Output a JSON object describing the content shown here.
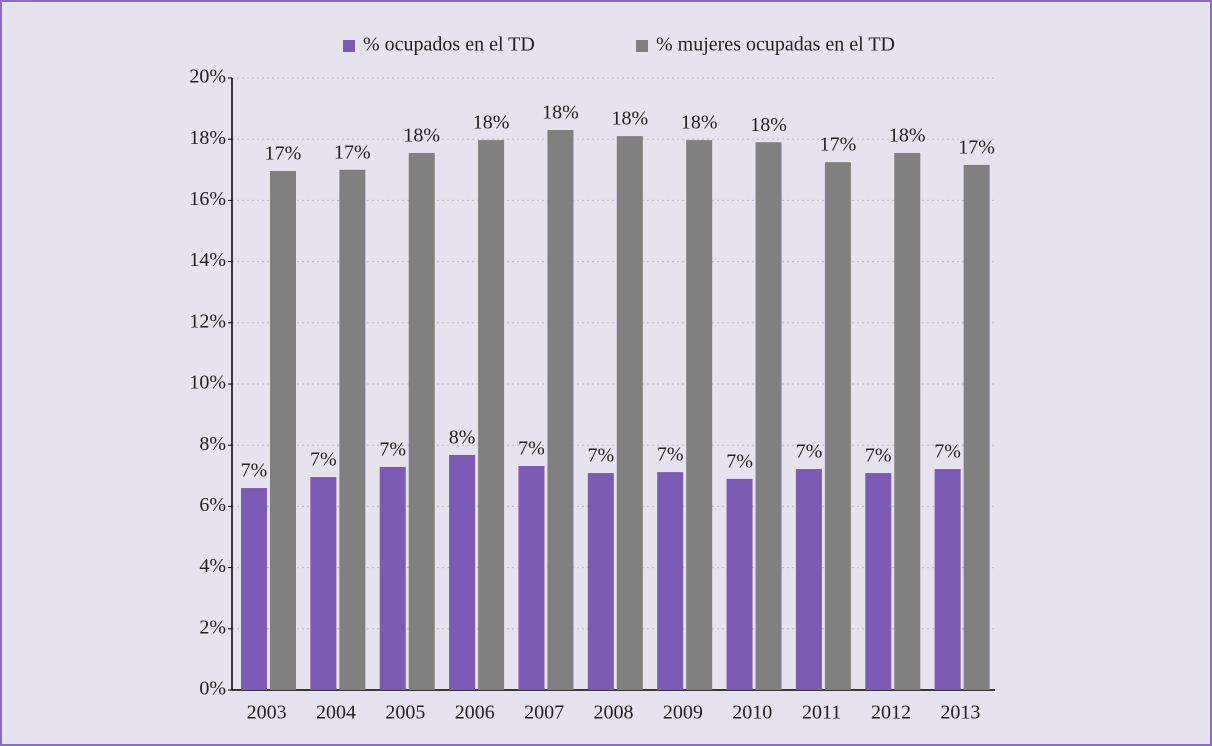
{
  "chart_data": {
    "type": "bar",
    "categories": [
      "2003",
      "2004",
      "2005",
      "2006",
      "2007",
      "2008",
      "2009",
      "2010",
      "2011",
      "2012",
      "2013"
    ],
    "series": [
      {
        "name": "% ocupados en el TD",
        "color": "#7b5bb3",
        "values": [
          6.6,
          6.96,
          7.29,
          7.68,
          7.32,
          7.09,
          7.12,
          6.9,
          7.22,
          7.09,
          7.22
        ],
        "value_labels": [
          "7%",
          "7%",
          "7%",
          "8%",
          "7%",
          "7%",
          "7%",
          "7%",
          "7%",
          "7%",
          "7%"
        ]
      },
      {
        "name": "% mujeres ocupadas en el TD",
        "color": "#808080",
        "values": [
          16.96,
          17.0,
          17.55,
          17.97,
          18.3,
          18.1,
          17.97,
          17.9,
          17.25,
          17.55,
          17.16
        ],
        "value_labels": [
          "17%",
          "17%",
          "18%",
          "18%",
          "18%",
          "18%",
          "18%",
          "18%",
          "17%",
          "18%",
          "17%"
        ]
      }
    ],
    "ylim": [
      0,
      20
    ],
    "yticks": [
      {
        "value": 0,
        "label": "0%"
      },
      {
        "value": 2,
        "label": "2%"
      },
      {
        "value": 4,
        "label": "4%"
      },
      {
        "value": 6,
        "label": "6%"
      },
      {
        "value": 8,
        "label": "8%"
      },
      {
        "value": 10,
        "label": "10%"
      },
      {
        "value": 12,
        "label": "12%"
      },
      {
        "value": 14,
        "label": "14%"
      },
      {
        "value": 16,
        "label": "16%"
      },
      {
        "value": 18,
        "label": "18%"
      },
      {
        "value": 20,
        "label": "20%"
      }
    ],
    "grid": true
  }
}
